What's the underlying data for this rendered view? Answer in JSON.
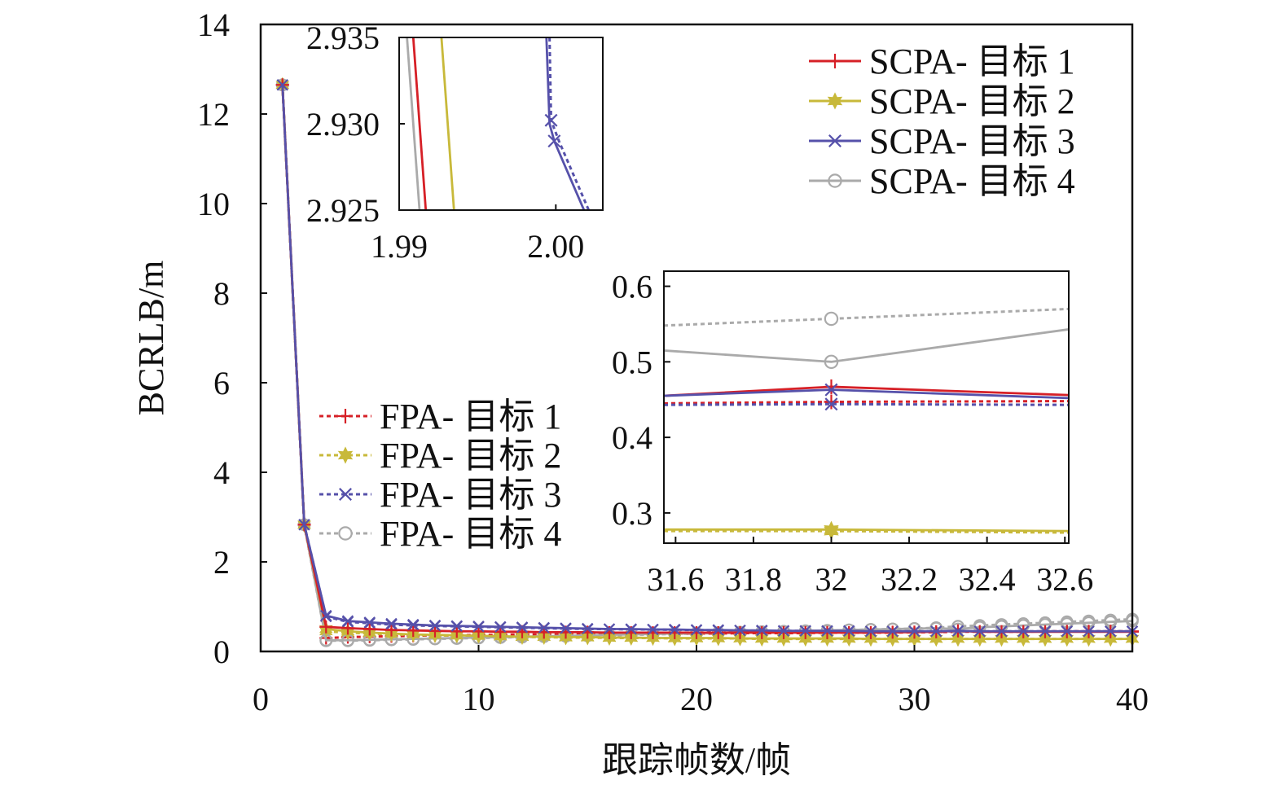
{
  "chart_data": [
    {
      "type": "line",
      "title": "",
      "xlabel": "跟踪帧数/帧",
      "ylabel": "BCRLB/m",
      "xlim": [
        0,
        40
      ],
      "ylim": [
        0,
        14
      ],
      "xticks": [
        "0",
        "10",
        "20",
        "30",
        "40"
      ],
      "yticks": [
        "0",
        "2",
        "4",
        "6",
        "8",
        "10",
        "12",
        "14"
      ],
      "grid": false,
      "legend_placement": [
        "top-right",
        "left-middle"
      ],
      "x": [
        1,
        2,
        3,
        4,
        5,
        6,
        7,
        8,
        9,
        10,
        11,
        12,
        13,
        14,
        15,
        16,
        17,
        18,
        19,
        20,
        21,
        22,
        23,
        24,
        25,
        26,
        27,
        28,
        29,
        30,
        31,
        32,
        33,
        34,
        35,
        36,
        37,
        38,
        39,
        40
      ],
      "series": [
        {
          "name": "SCPA- 目标 1",
          "color": "#d62027",
          "style": "solid",
          "marker": "plus",
          "values": [
            12.65,
            2.83,
            0.55,
            0.52,
            0.5,
            0.48,
            0.47,
            0.46,
            0.45,
            0.45,
            0.44,
            0.44,
            0.43,
            0.43,
            0.43,
            0.42,
            0.42,
            0.42,
            0.42,
            0.42,
            0.42,
            0.42,
            0.42,
            0.42,
            0.42,
            0.42,
            0.42,
            0.42,
            0.43,
            0.43,
            0.44,
            0.46,
            0.44,
            0.44,
            0.44,
            0.44,
            0.44,
            0.44,
            0.44,
            0.44
          ]
        },
        {
          "name": "SCPA- 目标 2",
          "color": "#c8b93a",
          "style": "solid",
          "marker": "star",
          "values": [
            12.65,
            2.83,
            0.5,
            0.45,
            0.42,
            0.4,
            0.38,
            0.37,
            0.36,
            0.35,
            0.34,
            0.33,
            0.33,
            0.32,
            0.32,
            0.31,
            0.31,
            0.3,
            0.3,
            0.3,
            0.3,
            0.29,
            0.29,
            0.29,
            0.29,
            0.29,
            0.29,
            0.28,
            0.28,
            0.28,
            0.28,
            0.28,
            0.28,
            0.28,
            0.28,
            0.28,
            0.28,
            0.28,
            0.28,
            0.28
          ]
        },
        {
          "name": "SCPA- 目标 3",
          "color": "#5651aa",
          "style": "solid",
          "marker": "x",
          "values": [
            12.65,
            2.83,
            0.8,
            0.68,
            0.65,
            0.62,
            0.6,
            0.58,
            0.57,
            0.56,
            0.55,
            0.54,
            0.53,
            0.52,
            0.51,
            0.5,
            0.5,
            0.49,
            0.49,
            0.48,
            0.48,
            0.47,
            0.47,
            0.46,
            0.46,
            0.46,
            0.46,
            0.45,
            0.45,
            0.45,
            0.45,
            0.46,
            0.45,
            0.45,
            0.45,
            0.45,
            0.45,
            0.45,
            0.45,
            0.45
          ]
        },
        {
          "name": "SCPA- 目标 4",
          "color": "#aaaaaa",
          "style": "solid",
          "marker": "circle",
          "values": [
            12.65,
            2.83,
            0.25,
            0.25,
            0.26,
            0.27,
            0.28,
            0.29,
            0.3,
            0.31,
            0.32,
            0.33,
            0.34,
            0.35,
            0.36,
            0.37,
            0.38,
            0.39,
            0.4,
            0.41,
            0.42,
            0.43,
            0.44,
            0.45,
            0.46,
            0.47,
            0.48,
            0.49,
            0.5,
            0.51,
            0.52,
            0.5,
            0.54,
            0.56,
            0.58,
            0.6,
            0.62,
            0.64,
            0.66,
            0.68
          ]
        },
        {
          "name": "FPA- 目标 1",
          "color": "#d62027",
          "style": "dotted",
          "marker": "plus",
          "values": [
            12.65,
            2.83,
            0.3,
            0.32,
            0.33,
            0.34,
            0.35,
            0.36,
            0.36,
            0.37,
            0.37,
            0.38,
            0.38,
            0.38,
            0.39,
            0.39,
            0.39,
            0.4,
            0.4,
            0.4,
            0.4,
            0.41,
            0.41,
            0.41,
            0.41,
            0.42,
            0.42,
            0.42,
            0.42,
            0.43,
            0.43,
            0.44,
            0.44,
            0.44,
            0.44,
            0.45,
            0.45,
            0.45,
            0.45,
            0.45
          ]
        },
        {
          "name": "FPA- 目标 2",
          "color": "#c8b93a",
          "style": "dotted",
          "marker": "star",
          "values": [
            12.65,
            2.83,
            0.45,
            0.42,
            0.4,
            0.38,
            0.37,
            0.36,
            0.35,
            0.34,
            0.33,
            0.32,
            0.32,
            0.31,
            0.31,
            0.3,
            0.3,
            0.3,
            0.29,
            0.29,
            0.29,
            0.29,
            0.28,
            0.28,
            0.28,
            0.28,
            0.28,
            0.28,
            0.28,
            0.28,
            0.28,
            0.28,
            0.28,
            0.28,
            0.28,
            0.28,
            0.28,
            0.28,
            0.28,
            0.28
          ]
        },
        {
          "name": "FPA- 目标 3",
          "color": "#5651aa",
          "style": "dotted",
          "marker": "x",
          "values": [
            12.65,
            2.83,
            0.78,
            0.66,
            0.63,
            0.6,
            0.58,
            0.57,
            0.56,
            0.55,
            0.54,
            0.53,
            0.52,
            0.51,
            0.5,
            0.5,
            0.49,
            0.49,
            0.48,
            0.48,
            0.47,
            0.47,
            0.46,
            0.46,
            0.46,
            0.45,
            0.45,
            0.45,
            0.45,
            0.45,
            0.45,
            0.45,
            0.45,
            0.45,
            0.45,
            0.45,
            0.45,
            0.45,
            0.45,
            0.45
          ]
        },
        {
          "name": "FPA- 目标 4",
          "color": "#aaaaaa",
          "style": "dotted",
          "marker": "circle",
          "values": [
            12.65,
            2.83,
            0.24,
            0.24,
            0.25,
            0.26,
            0.27,
            0.28,
            0.29,
            0.3,
            0.31,
            0.32,
            0.33,
            0.34,
            0.35,
            0.36,
            0.37,
            0.38,
            0.39,
            0.4,
            0.41,
            0.42,
            0.43,
            0.44,
            0.45,
            0.46,
            0.48,
            0.49,
            0.5,
            0.51,
            0.53,
            0.56,
            0.58,
            0.6,
            0.62,
            0.64,
            0.66,
            0.68,
            0.7,
            0.72
          ]
        }
      ]
    },
    {
      "type": "line",
      "inset": "upper-left zoom",
      "xlim": [
        1.99,
        2.003
      ],
      "ylim": [
        2.925,
        2.935
      ],
      "xticks": [
        "1.99",
        "2.00"
      ],
      "yticks": [
        "2.935",
        "2.930",
        "2.925"
      ],
      "series": [
        {
          "color": "#aaaaaa",
          "style": "solid",
          "x": [
            1.9905,
            1.9913
          ],
          "values": [
            2.935,
            2.925
          ]
        },
        {
          "color": "#d62027",
          "style": "solid",
          "x": [
            1.9909,
            1.9917
          ],
          "values": [
            2.935,
            2.925
          ]
        },
        {
          "color": "#c8b93a",
          "style": "solid",
          "x": [
            1.9927,
            1.9935
          ],
          "values": [
            2.935,
            2.925
          ]
        },
        {
          "color": "#5651aa",
          "style": "solid",
          "marker": "x",
          "x": [
            1.9994,
            1.9996,
            1.9999,
            2.0018
          ],
          "values": [
            2.935,
            2.93,
            2.929,
            2.925
          ]
        },
        {
          "color": "#5651aa",
          "style": "dotted",
          "marker": "x",
          "x": [
            1.9996,
            1.9997,
            2.0002,
            2.0021
          ],
          "values": [
            2.935,
            2.9302,
            2.929,
            2.925
          ]
        }
      ]
    },
    {
      "type": "line",
      "inset": "middle-right zoom",
      "xlim": [
        31.57,
        32.61
      ],
      "ylim": [
        0.26,
        0.62
      ],
      "xticks": [
        "31.6",
        "31.8",
        "32",
        "32.2",
        "32.4",
        "32.6"
      ],
      "yticks": [
        "0.6",
        "0.5",
        "0.4",
        "0.3"
      ],
      "series": [
        {
          "color": "#d62027",
          "style": "solid",
          "marker": "plus",
          "x": [
            31.57,
            32,
            32.61
          ],
          "values": [
            0.455,
            0.467,
            0.456
          ]
        },
        {
          "color": "#5651aa",
          "style": "solid",
          "marker": "x",
          "x": [
            31.57,
            32,
            32.61
          ],
          "values": [
            0.455,
            0.463,
            0.452
          ]
        },
        {
          "color": "#d62027",
          "style": "dotted",
          "marker": "plus",
          "x": [
            31.57,
            32,
            32.61
          ],
          "values": [
            0.445,
            0.447,
            0.448
          ]
        },
        {
          "color": "#5651aa",
          "style": "dotted",
          "marker": "x",
          "x": [
            31.57,
            32,
            32.61
          ],
          "values": [
            0.443,
            0.444,
            0.443
          ]
        },
        {
          "color": "#aaaaaa",
          "style": "solid",
          "marker": "circle",
          "x": [
            31.57,
            32,
            32.61
          ],
          "values": [
            0.515,
            0.5,
            0.543
          ]
        },
        {
          "color": "#aaaaaa",
          "style": "dotted",
          "marker": "circle",
          "x": [
            31.57,
            32,
            32.61
          ],
          "values": [
            0.548,
            0.557,
            0.57
          ]
        },
        {
          "color": "#c8b93a",
          "style": "solid",
          "marker": "star",
          "x": [
            31.57,
            32,
            32.61
          ],
          "values": [
            0.278,
            0.278,
            0.276
          ]
        },
        {
          "color": "#c8b93a",
          "style": "dotted",
          "marker": "star",
          "x": [
            31.57,
            32,
            32.61
          ],
          "values": [
            0.276,
            0.276,
            0.274
          ]
        }
      ]
    }
  ]
}
